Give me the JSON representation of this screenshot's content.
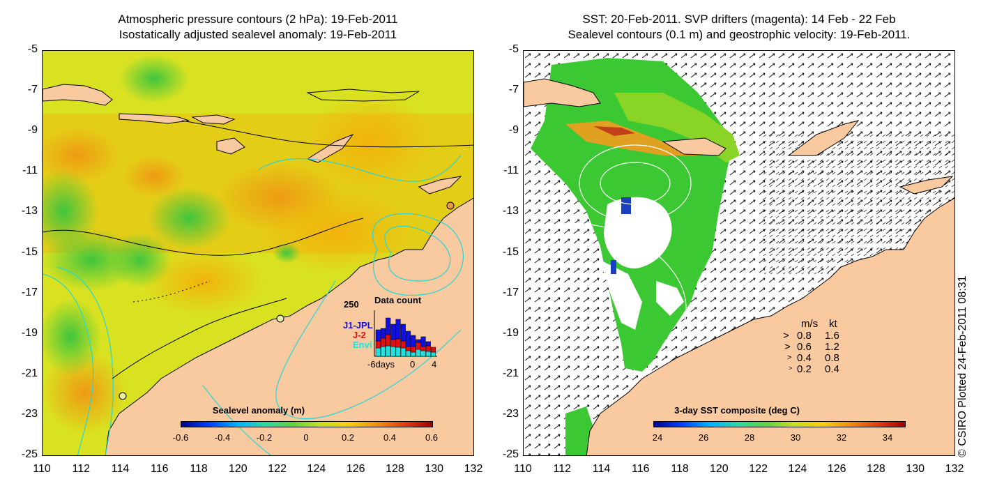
{
  "left_panel": {
    "title_line1": "Atmospheric pressure contours (2 hPa): 19-Feb-2011",
    "title_line2": "Isostatically adjusted sealevel anomaly: 19-Feb-2011",
    "colorbar_title": "Sealevel anomaly (m)",
    "colorbar_labels": [
      "-0.6",
      "-0.4",
      "-0.2",
      "0",
      "0.2",
      "0.4",
      "0.6"
    ],
    "data_count": {
      "title": "Data count",
      "ymax_label": "250",
      "series": [
        "J1-JPL",
        "J-2",
        "Envi"
      ],
      "series_colors": [
        "#1010e0",
        "#e01010",
        "#20e0e0"
      ],
      "x_labels": [
        "-6days",
        "0",
        "4"
      ]
    }
  },
  "right_panel": {
    "title_line1": "SST: 20-Feb-2011. SVP drifters (magenta): 14 Feb - 22 Feb",
    "title_line2": "Sealevel contours (0.1 m) and geostrophic velocity: 19-Feb-2011.",
    "colorbar_title": "3-day SST composite (deg C)",
    "colorbar_labels": [
      "24",
      "26",
      "28",
      "30",
      "32",
      "34"
    ],
    "velocity_legend": {
      "header_ms": "m/s",
      "header_kt": "kt",
      "rows": [
        {
          "ms": "0.8",
          "kt": "1.6"
        },
        {
          "ms": "0.6",
          "kt": "1.2"
        },
        {
          "ms": "0.4",
          "kt": "0.8"
        },
        {
          "ms": "0.2",
          "kt": "0.4"
        }
      ]
    }
  },
  "axes": {
    "y_labels": [
      "-5",
      "-7",
      "-9",
      "-11",
      "-13",
      "-15",
      "-17",
      "-19",
      "-21",
      "-23",
      "-25"
    ],
    "x_labels": [
      "110",
      "112",
      "114",
      "116",
      "118",
      "120",
      "122",
      "124",
      "126",
      "128",
      "130",
      "132"
    ]
  },
  "credit": "© CSIRO Plotted 24-Feb-2011 08:31",
  "colors": {
    "land": "#f9c9a0",
    "ocean_anomaly_mid": "#e4e626",
    "ocean_anomaly_high": "#f2b20a",
    "ocean_anomaly_low": "#4fc93a",
    "sst_green": "#3cc832",
    "contour_cyan": "#26d6d6"
  }
}
